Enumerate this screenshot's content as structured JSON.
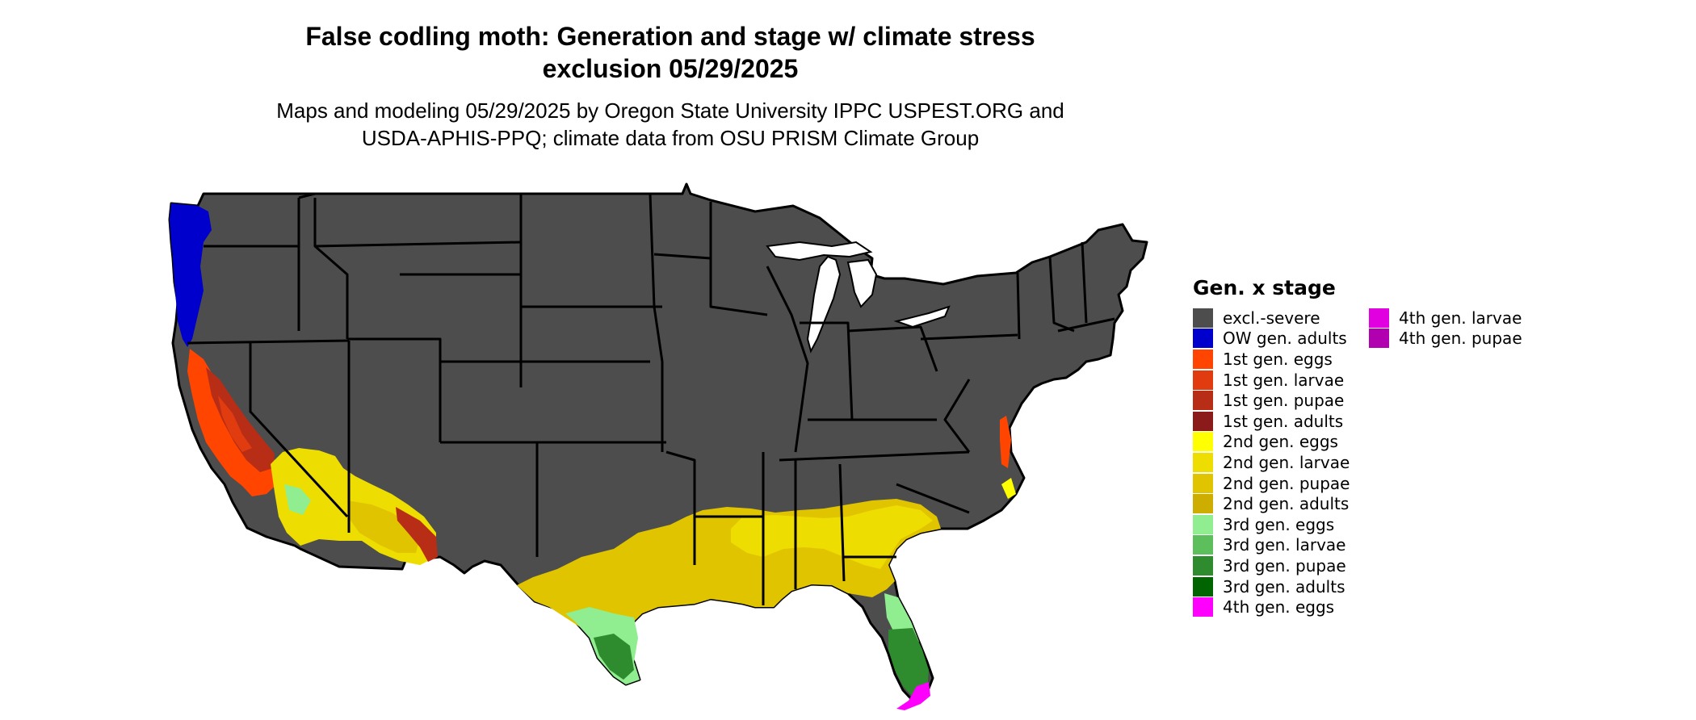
{
  "title_line1": "False codling moth: Generation and stage w/ climate stress",
  "title_line2": "exclusion 05/29/2025",
  "subtitle_line1": "Maps and modeling 05/29/2025 by Oregon State University IPPC USPEST.ORG and",
  "subtitle_line2": "USDA-APHIS-PPQ; climate data from OSU PRISM Climate Group",
  "legend": {
    "title": "Gen. x stage",
    "items": [
      {
        "label": "excl.-severe",
        "color": "#4d4d4d"
      },
      {
        "label": "OW gen. adults",
        "color": "#0000cd"
      },
      {
        "label": "1st gen. eggs",
        "color": "#ff4500"
      },
      {
        "label": "1st gen. larvae",
        "color": "#e03c10"
      },
      {
        "label": "1st gen. pupae",
        "color": "#b82d15"
      },
      {
        "label": "1st gen. adults",
        "color": "#8b1a1a"
      },
      {
        "label": "2nd gen. eggs",
        "color": "#ffff00"
      },
      {
        "label": "2nd gen. larvae",
        "color": "#eedd00"
      },
      {
        "label": "2nd gen. pupae",
        "color": "#e0c400"
      },
      {
        "label": "2nd gen. adults",
        "color": "#cdad00"
      },
      {
        "label": "3rd gen. eggs",
        "color": "#90ee90"
      },
      {
        "label": "3rd gen. larvae",
        "color": "#5cbf5c"
      },
      {
        "label": "3rd gen. pupae",
        "color": "#2e8b2e"
      },
      {
        "label": "3rd gen. adults",
        "color": "#006400"
      },
      {
        "label": "4th gen. eggs",
        "color": "#ff00ff"
      },
      {
        "label": "4th gen. larvae",
        "color": "#e000e0"
      },
      {
        "label": "4th gen. pupae",
        "color": "#b000b0"
      }
    ]
  }
}
